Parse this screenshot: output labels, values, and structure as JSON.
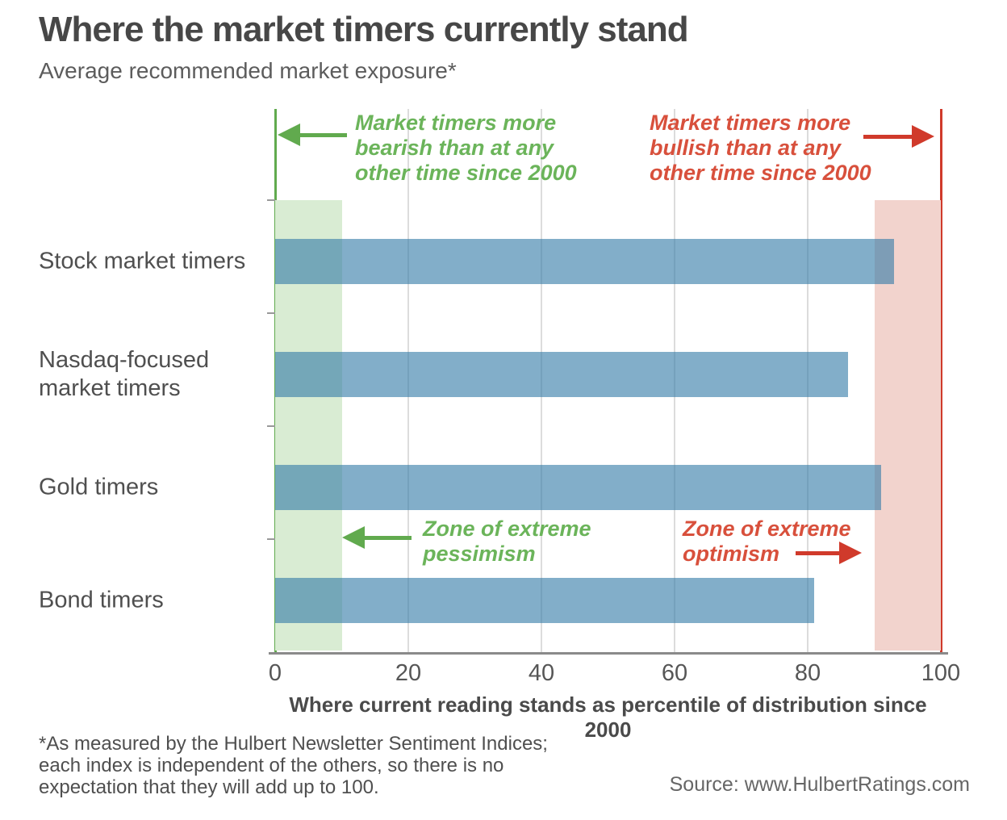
{
  "header": {
    "title": "Where the market timers currently stand",
    "subtitle": "Average recommended market exposure*"
  },
  "chart_data": {
    "type": "bar",
    "orientation": "horizontal",
    "title": "Where the market timers currently stand",
    "subtitle": "Average recommended market exposure*",
    "categories": [
      "Stock market timers",
      "Nasdaq-focused\nmarket timers",
      "Gold timers",
      "Bond timers"
    ],
    "values": [
      93,
      86,
      91,
      81
    ],
    "xlabel": "Where current reading stands as percentile of distribution since 2000",
    "xlim": [
      0,
      100
    ],
    "xticks": [
      "0",
      "20",
      "40",
      "60",
      "80",
      "100"
    ],
    "grid": true,
    "bands": [
      {
        "range": [
          0,
          10
        ],
        "meaning": "Zone of extreme pessimism",
        "color": "#d9ecd3"
      },
      {
        "range": [
          90,
          100
        ],
        "meaning": "Zone of extreme optimism",
        "color": "#f2d3cd"
      }
    ],
    "annotations": [
      {
        "text": "Market timers more\nbearish than at any\nother time since 2000",
        "color": "#6bb45a",
        "arrow": "left"
      },
      {
        "text": "Market timers more\nbullish than at any\nother time since 2000",
        "color": "#d8503c",
        "arrow": "right"
      },
      {
        "text": "Zone of extreme\npessimism",
        "color": "#6bb45a",
        "arrow": "left"
      },
      {
        "text": "Zone of extreme\noptimism",
        "color": "#d8503c",
        "arrow": "right"
      }
    ]
  },
  "axis": {
    "ticks": [
      "0",
      "20",
      "40",
      "60",
      "80",
      "100"
    ],
    "label": "Where current reading stands as percentile of distribution since 2000"
  },
  "footer": {
    "footnote": "*As measured by the Hulbert Newsletter Sentiment Indices;\neach index is independent of the others, so there is no\nexpectation that they will add up to 100.",
    "source": "Source: www.HulbertRatings.com"
  },
  "colors": {
    "bar_blue": "#83b0cc",
    "green_line": "#61aa4e",
    "green_zone": "#d9ecd3",
    "red_line": "#d03a2b",
    "red_zone": "#f2d3cd",
    "title_ink": "#474747"
  }
}
